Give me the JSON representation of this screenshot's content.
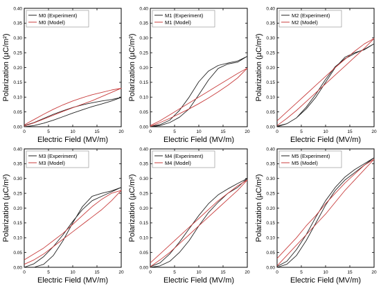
{
  "colors": {
    "experiment": "#222222",
    "model": "#c83c3c",
    "axis": "#000000"
  },
  "chart_data": [
    {
      "type": "line",
      "xlabel": "Electric Field (MV/m)",
      "ylabel": "Polarization (µC/m²)",
      "xlim": [
        0,
        20
      ],
      "ylim": [
        0,
        0.4
      ],
      "xticks": [
        0,
        5,
        10,
        15,
        20
      ],
      "yticks": [
        0.0,
        0.05,
        0.1,
        0.15,
        0.2,
        0.25,
        0.3,
        0.35,
        0.4
      ],
      "legend_position": "top-left",
      "series": [
        {
          "name": "M0 (Experiment)",
          "x": [
            0,
            2,
            4,
            6,
            8,
            10,
            12,
            14,
            16,
            18,
            20,
            18,
            16,
            14,
            12,
            10,
            8,
            6,
            4,
            2,
            0
          ],
          "y": [
            0,
            0.004,
            0.012,
            0.022,
            0.034,
            0.046,
            0.057,
            0.068,
            0.077,
            0.087,
            0.099,
            0.092,
            0.087,
            0.081,
            0.074,
            0.065,
            0.054,
            0.042,
            0.028,
            0.014,
            0.004
          ]
        },
        {
          "name": "M0 (Model)",
          "x": [
            0,
            2,
            4,
            6,
            8,
            10,
            12,
            14,
            16,
            18,
            20,
            18,
            16,
            14,
            12,
            10,
            8,
            6,
            4,
            2,
            0
          ],
          "y": [
            0.002,
            0.013,
            0.026,
            0.039,
            0.052,
            0.064,
            0.076,
            0.088,
            0.102,
            0.116,
            0.13,
            0.124,
            0.116,
            0.108,
            0.098,
            0.087,
            0.074,
            0.059,
            0.042,
            0.024,
            0.006
          ]
        }
      ]
    },
    {
      "type": "line",
      "xlabel": "Electric Field (MV/m)",
      "ylabel": "Polarization (µC/m²)",
      "xlim": [
        0,
        20
      ],
      "ylim": [
        0,
        0.4
      ],
      "xticks": [
        0,
        5,
        10,
        15,
        20
      ],
      "yticks": [
        0.0,
        0.05,
        0.1,
        0.15,
        0.2,
        0.25,
        0.3,
        0.35,
        0.4
      ],
      "legend_position": "top-left",
      "series": [
        {
          "name": "M1 (Experiment)",
          "x": [
            0,
            2,
            4,
            6,
            8,
            10,
            12,
            14,
            16,
            18,
            20,
            18,
            16,
            14,
            12,
            10,
            8,
            6,
            4,
            2,
            0
          ],
          "y": [
            0,
            0.004,
            0.014,
            0.032,
            0.06,
            0.108,
            0.158,
            0.197,
            0.212,
            0.218,
            0.238,
            0.222,
            0.215,
            0.207,
            0.188,
            0.152,
            0.1,
            0.055,
            0.022,
            0.007,
            0.001
          ]
        },
        {
          "name": "M1 (Model)",
          "x": [
            0,
            2,
            4,
            6,
            8,
            10,
            12,
            14,
            16,
            18,
            20,
            18,
            16,
            14,
            12,
            10,
            8,
            6,
            4,
            2,
            0
          ],
          "y": [
            0.001,
            0.014,
            0.028,
            0.044,
            0.06,
            0.078,
            0.097,
            0.118,
            0.14,
            0.165,
            0.198,
            0.18,
            0.16,
            0.14,
            0.12,
            0.1,
            0.08,
            0.06,
            0.04,
            0.02,
            0.004
          ]
        }
      ]
    },
    {
      "type": "line",
      "xlabel": "Electric Field (MV/m)",
      "ylabel": "Polarization (µC/m²)",
      "xlim": [
        0,
        20
      ],
      "ylim": [
        0,
        0.4
      ],
      "xticks": [
        0,
        5,
        10,
        15,
        20
      ],
      "yticks": [
        0.0,
        0.05,
        0.1,
        0.15,
        0.2,
        0.25,
        0.3,
        0.35,
        0.4
      ],
      "legend_position": "top-left",
      "series": [
        {
          "name": "M2 (Experiment)",
          "x": [
            0,
            2,
            4,
            6,
            8,
            10,
            12,
            14,
            16,
            18,
            20,
            18,
            16,
            14,
            12,
            10,
            8,
            6,
            4,
            2,
            0
          ],
          "y": [
            0,
            0.01,
            0.03,
            0.06,
            0.1,
            0.15,
            0.2,
            0.235,
            0.25,
            0.26,
            0.28,
            0.262,
            0.247,
            0.23,
            0.203,
            0.16,
            0.11,
            0.066,
            0.03,
            0.01,
            0.002
          ]
        },
        {
          "name": "M2 (Model)",
          "x": [
            0,
            2,
            4,
            6,
            8,
            10,
            12,
            14,
            16,
            18,
            20,
            18,
            16,
            14,
            12,
            10,
            8,
            6,
            4,
            2,
            0
          ],
          "y": [
            0.004,
            0.028,
            0.055,
            0.085,
            0.115,
            0.145,
            0.175,
            0.205,
            0.235,
            0.265,
            0.298,
            0.28,
            0.255,
            0.228,
            0.2,
            0.17,
            0.14,
            0.11,
            0.08,
            0.05,
            0.02
          ]
        }
      ]
    },
    {
      "type": "line",
      "xlabel": "Electric Field (MV/m)",
      "ylabel": "Polarization (µC/m²)",
      "xlim": [
        0,
        20
      ],
      "ylim": [
        0,
        0.4
      ],
      "xticks": [
        0,
        5,
        10,
        15,
        20
      ],
      "yticks": [
        0.0,
        0.05,
        0.1,
        0.15,
        0.2,
        0.25,
        0.3,
        0.35,
        0.4
      ],
      "legend_position": "top-left",
      "series": [
        {
          "name": "M3 (Experiment)",
          "x": [
            2,
            4,
            6,
            8,
            10,
            12,
            14,
            16,
            18,
            20,
            18,
            16,
            14,
            12,
            10,
            8,
            6,
            4,
            2,
            0
          ],
          "y": [
            0,
            0.01,
            0.04,
            0.09,
            0.15,
            0.205,
            0.24,
            0.25,
            0.258,
            0.27,
            0.255,
            0.24,
            0.225,
            0.195,
            0.155,
            0.11,
            0.07,
            0.036,
            0.012,
            0.0
          ]
        },
        {
          "name": "M3 (Model)",
          "x": [
            0,
            2,
            4,
            6,
            8,
            10,
            12,
            14,
            16,
            18,
            20,
            18,
            16,
            14,
            12,
            10,
            8,
            6,
            4,
            2,
            0
          ],
          "y": [
            0.01,
            0.025,
            0.045,
            0.07,
            0.095,
            0.12,
            0.145,
            0.17,
            0.195,
            0.225,
            0.26,
            0.25,
            0.23,
            0.205,
            0.175,
            0.145,
            0.115,
            0.09,
            0.065,
            0.045,
            0.025
          ]
        }
      ]
    },
    {
      "type": "line",
      "xlabel": "Electric Field (MV/m)",
      "ylabel": "Polarization (µC/m²)",
      "xlim": [
        0,
        20
      ],
      "ylim": [
        0,
        0.4
      ],
      "xticks": [
        0,
        5,
        10,
        15,
        20
      ],
      "yticks": [
        0.0,
        0.05,
        0.1,
        0.15,
        0.2,
        0.25,
        0.3,
        0.35,
        0.4
      ],
      "legend_position": "top-left",
      "series": [
        {
          "name": "M4 (Experiment)",
          "x": [
            0,
            2,
            4,
            6,
            8,
            10,
            12,
            14,
            16,
            18,
            20,
            18,
            16,
            14,
            12,
            10,
            8,
            6,
            4,
            2,
            0
          ],
          "y": [
            0,
            0.005,
            0.02,
            0.05,
            0.09,
            0.14,
            0.185,
            0.22,
            0.25,
            0.27,
            0.3,
            0.283,
            0.265,
            0.245,
            0.215,
            0.175,
            0.13,
            0.085,
            0.045,
            0.015,
            0.002
          ]
        },
        {
          "name": "M4 (Model)",
          "x": [
            0,
            2,
            4,
            6,
            8,
            10,
            12,
            14,
            16,
            18,
            20,
            18,
            16,
            14,
            12,
            10,
            8,
            6,
            4,
            2,
            0
          ],
          "y": [
            0.002,
            0.025,
            0.05,
            0.08,
            0.11,
            0.14,
            0.17,
            0.2,
            0.23,
            0.26,
            0.295,
            0.275,
            0.25,
            0.225,
            0.195,
            0.165,
            0.135,
            0.105,
            0.075,
            0.045,
            0.015
          ]
        }
      ]
    },
    {
      "type": "line",
      "xlabel": "Electric Field (MV/m)",
      "ylabel": "Polarization (µC/m²)",
      "xlim": [
        0,
        20
      ],
      "ylim": [
        0,
        0.4
      ],
      "xticks": [
        0,
        5,
        10,
        15,
        20
      ],
      "yticks": [
        0.0,
        0.05,
        0.1,
        0.15,
        0.2,
        0.25,
        0.3,
        0.35,
        0.4
      ],
      "legend_position": "top-left",
      "series": [
        {
          "name": "M5 (Experiment)",
          "x": [
            0,
            2,
            4,
            6,
            8,
            10,
            12,
            14,
            16,
            18,
            20,
            18,
            16,
            14,
            12,
            10,
            8,
            6,
            4,
            2,
            0
          ],
          "y": [
            0,
            0.01,
            0.04,
            0.09,
            0.15,
            0.21,
            0.26,
            0.295,
            0.32,
            0.345,
            0.37,
            0.35,
            0.33,
            0.305,
            0.27,
            0.225,
            0.17,
            0.11,
            0.06,
            0.02,
            0.003
          ]
        },
        {
          "name": "M5 (Model)",
          "x": [
            0,
            2,
            4,
            6,
            8,
            10,
            12,
            14,
            16,
            18,
            20,
            18,
            16,
            14,
            12,
            10,
            8,
            6,
            4,
            2,
            0
          ],
          "y": [
            0.005,
            0.04,
            0.075,
            0.11,
            0.145,
            0.18,
            0.22,
            0.26,
            0.295,
            0.33,
            0.365,
            0.345,
            0.315,
            0.285,
            0.25,
            0.215,
            0.175,
            0.14,
            0.1,
            0.065,
            0.03
          ]
        }
      ]
    }
  ]
}
